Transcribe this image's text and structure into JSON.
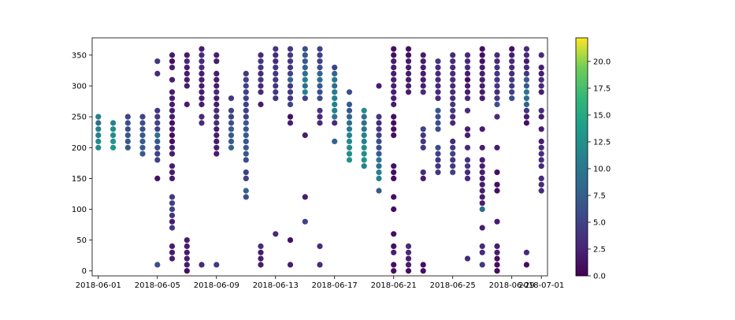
{
  "chart_data": {
    "type": "scatter",
    "title": "",
    "xlabel": "",
    "ylabel": "",
    "x_ticks": [
      "2018-06-01",
      "2018-06-05",
      "2018-06-09",
      "2018-06-13",
      "2018-06-17",
      "2018-06-21",
      "2018-06-25",
      "2018-06-29",
      "2018-07-01"
    ],
    "y_ticks": [
      "0",
      "50",
      "100",
      "150",
      "200",
      "250",
      "300",
      "350"
    ],
    "xlim": [
      "2018-05-31T14:00",
      "2018-07-01T10:00"
    ],
    "ylim": [
      -8,
      378
    ],
    "colorbar": {
      "colormap": "viridis",
      "range": [
        0,
        22.2
      ],
      "ticks": [
        "0.0",
        "2.5",
        "5.0",
        "7.5",
        "10.0",
        "12.5",
        "15.0",
        "17.5",
        "20.0"
      ]
    },
    "grid": false,
    "points": [
      {
        "x": "2018-06-01",
        "ys": [
          200,
          210,
          220,
          230,
          240,
          250
        ],
        "c": [
          12,
          12,
          11,
          11,
          9,
          11
        ]
      },
      {
        "x": "2018-06-02",
        "ys": [
          200,
          210,
          220,
          230,
          240
        ],
        "c": [
          13,
          13,
          12,
          12,
          11
        ]
      },
      {
        "x": "2018-06-03",
        "ys": [
          200,
          210,
          220,
          230,
          240,
          250
        ],
        "c": [
          7,
          7,
          7,
          6,
          6,
          5
        ]
      },
      {
        "x": "2018-06-04",
        "ys": [
          190,
          200,
          210,
          220,
          230,
          240,
          250
        ],
        "c": [
          7,
          7,
          7,
          7,
          6,
          6,
          5
        ]
      },
      {
        "x": "2018-06-05",
        "ys": [
          10,
          150,
          180,
          190,
          200,
          210,
          220,
          230,
          240,
          250,
          260,
          320,
          340
        ],
        "c": [
          6,
          1,
          5,
          5,
          6,
          7,
          9,
          5,
          5,
          4,
          4,
          3,
          4
        ]
      },
      {
        "x": "2018-06-06",
        "ys": [
          20,
          30,
          40,
          70,
          80,
          90,
          100,
          110,
          120,
          150,
          160,
          170,
          190,
          200,
          210,
          220,
          230,
          240,
          250,
          260,
          270,
          280,
          290,
          310,
          330,
          340,
          350
        ],
        "c": [
          2,
          2,
          2,
          4,
          2,
          4,
          5,
          5,
          4,
          2,
          2,
          2,
          2,
          2,
          1,
          1,
          2,
          1,
          2,
          2,
          2,
          2,
          2,
          2,
          2,
          1,
          2
        ]
      },
      {
        "x": "2018-06-07",
        "ys": [
          0,
          10,
          20,
          30,
          40,
          50,
          270,
          300,
          310,
          320,
          330,
          340,
          350
        ],
        "c": [
          1,
          2,
          2,
          2,
          2,
          2,
          2,
          2,
          2,
          2,
          2,
          3,
          2
        ]
      },
      {
        "x": "2018-06-08",
        "ys": [
          10,
          240,
          250,
          270,
          280,
          290,
          300,
          310,
          320,
          330,
          340,
          350,
          360
        ],
        "c": [
          3,
          3,
          3,
          2,
          2,
          2,
          2,
          2,
          2,
          3,
          3,
          3,
          2
        ]
      },
      {
        "x": "2018-06-09",
        "ys": [
          10,
          190,
          200,
          210,
          220,
          230,
          240,
          250,
          260,
          270,
          280,
          290,
          300,
          310,
          320,
          340,
          350
        ],
        "c": [
          4,
          2,
          2,
          2,
          2,
          2,
          3,
          3,
          3,
          2,
          2,
          3,
          2,
          2,
          2,
          2,
          2
        ]
      },
      {
        "x": "2018-06-10",
        "ys": [
          200,
          210,
          220,
          230,
          240,
          250,
          260,
          280
        ],
        "c": [
          8,
          7,
          7,
          7,
          6,
          5,
          5,
          4
        ]
      },
      {
        "x": "2018-06-11",
        "ys": [
          120,
          130,
          150,
          160,
          180,
          190,
          200,
          210,
          220,
          230,
          240,
          250,
          260,
          270,
          280,
          290,
          300,
          310,
          320
        ],
        "c": [
          6,
          8,
          5,
          5,
          6,
          7,
          7,
          7,
          7,
          7,
          7,
          5,
          5,
          5,
          5,
          5,
          5,
          5,
          4
        ]
      },
      {
        "x": "2018-06-12",
        "ys": [
          10,
          20,
          30,
          40,
          270,
          290,
          300,
          310,
          320,
          330,
          340,
          350
        ],
        "c": [
          2,
          2,
          2,
          3,
          2,
          3,
          3,
          4,
          3,
          4,
          4,
          3
        ]
      },
      {
        "x": "2018-06-13",
        "ys": [
          60,
          280,
          290,
          300,
          310,
          320,
          330,
          340,
          350,
          360
        ],
        "c": [
          3,
          4,
          4,
          4,
          4,
          4,
          4,
          3,
          3,
          4
        ]
      },
      {
        "x": "2018-06-14",
        "ys": [
          10,
          50,
          240,
          250,
          270,
          280,
          290,
          300,
          310,
          320,
          330,
          340,
          350,
          360
        ],
        "c": [
          2,
          1,
          2,
          1,
          5,
          4,
          4,
          4,
          8,
          5,
          4,
          4,
          4,
          4
        ]
      },
      {
        "x": "2018-06-15",
        "ys": [
          80,
          120,
          220,
          280,
          290,
          300,
          310,
          320,
          330,
          340,
          350,
          360
        ],
        "c": [
          5,
          2,
          2,
          5,
          11,
          9,
          11,
          9,
          8,
          7,
          7,
          6
        ]
      },
      {
        "x": "2018-06-16",
        "ys": [
          10,
          40,
          240,
          250,
          260,
          280,
          290,
          300,
          310,
          320,
          330,
          340,
          350,
          360
        ],
        "c": [
          3,
          3,
          3,
          3,
          4,
          6,
          6,
          7,
          9,
          8,
          6,
          5,
          5,
          5
        ]
      },
      {
        "x": "2018-06-17",
        "ys": [
          210,
          240,
          250,
          260,
          270,
          280,
          290,
          300,
          310,
          320,
          330
        ],
        "c": [
          8,
          3,
          10,
          11,
          11,
          11,
          10,
          9,
          10,
          8,
          5
        ]
      },
      {
        "x": "2018-06-18",
        "ys": [
          180,
          190,
          200,
          210,
          220,
          230,
          240,
          250,
          260,
          270,
          290
        ],
        "c": [
          13,
          12,
          12,
          12,
          11,
          10,
          9,
          8,
          7,
          7,
          6
        ]
      },
      {
        "x": "2018-06-19",
        "ys": [
          170,
          180,
          190,
          200,
          210,
          220,
          230,
          240,
          250,
          260
        ],
        "c": [
          11,
          13,
          12,
          12,
          11,
          11,
          10,
          9,
          9,
          12
        ]
      },
      {
        "x": "2018-06-20",
        "ys": [
          130,
          150,
          160,
          170,
          180,
          190,
          200,
          210,
          220,
          230,
          240,
          250,
          300
        ],
        "c": [
          7,
          11,
          11,
          9,
          10,
          7,
          6,
          6,
          5,
          4,
          3,
          4,
          2
        ]
      },
      {
        "x": "2018-06-21",
        "ys": [
          0,
          10,
          30,
          40,
          60,
          100,
          120,
          150,
          160,
          170,
          220,
          230,
          240,
          250,
          270,
          280,
          290,
          300,
          310,
          320,
          330,
          340,
          350,
          360
        ],
        "c": [
          1,
          1,
          2,
          1,
          1,
          1,
          1,
          1,
          1,
          1,
          1,
          1,
          1,
          1,
          2,
          2,
          2,
          2,
          2,
          2,
          2,
          2,
          1,
          1
        ]
      },
      {
        "x": "2018-06-22",
        "ys": [
          0,
          10,
          20,
          30,
          40,
          290,
          300,
          310,
          320,
          330,
          340,
          350,
          360
        ],
        "c": [
          1,
          2,
          2,
          3,
          3,
          2,
          2,
          2,
          2,
          2,
          2,
          1,
          1
        ]
      },
      {
        "x": "2018-06-23",
        "ys": [
          0,
          10,
          150,
          160,
          200,
          210,
          220,
          230,
          290,
          300,
          310,
          320,
          330,
          340,
          350
        ],
        "c": [
          1,
          1,
          2,
          3,
          4,
          4,
          4,
          5,
          3,
          2,
          2,
          2,
          2,
          2,
          2
        ]
      },
      {
        "x": "2018-06-24",
        "ys": [
          160,
          170,
          180,
          190,
          200,
          230,
          240,
          250,
          260,
          280,
          290,
          300,
          310,
          320,
          330,
          340
        ],
        "c": [
          4,
          4,
          4,
          5,
          6,
          6,
          6,
          6,
          7,
          3,
          3,
          3,
          3,
          3,
          3,
          4
        ]
      },
      {
        "x": "2018-06-25",
        "ys": [
          160,
          170,
          180,
          190,
          200,
          210,
          240,
          250,
          260,
          270,
          280,
          290,
          300,
          310,
          320,
          330,
          340,
          350
        ],
        "c": [
          5,
          4,
          4,
          5,
          4,
          3,
          3,
          3,
          4,
          4,
          3,
          3,
          3,
          3,
          3,
          3,
          3,
          3
        ]
      },
      {
        "x": "2018-06-26",
        "ys": [
          20,
          150,
          160,
          170,
          180,
          200,
          220,
          230,
          260,
          280,
          290,
          300,
          310,
          320,
          330,
          340,
          350
        ],
        "c": [
          3,
          3,
          3,
          4,
          4,
          3,
          2,
          2,
          3,
          3,
          2,
          2,
          1,
          2,
          3,
          3,
          3
        ]
      },
      {
        "x": "2018-06-27",
        "ys": [
          10,
          30,
          40,
          70,
          100,
          110,
          120,
          130,
          140,
          150,
          160,
          170,
          180,
          200,
          230,
          280,
          290,
          300,
          310,
          320,
          330,
          340,
          350,
          360
        ],
        "c": [
          4,
          3,
          3,
          2,
          9,
          2,
          2,
          2,
          2,
          2,
          2,
          2,
          2,
          2,
          2,
          2,
          2,
          2,
          2,
          2,
          2,
          1,
          1,
          1
        ]
      },
      {
        "x": "2018-06-28",
        "ys": [
          0,
          10,
          20,
          30,
          40,
          80,
          130,
          140,
          160,
          200,
          250,
          270,
          280,
          290,
          300,
          310,
          320,
          330,
          340,
          350
        ],
        "c": [
          1,
          1,
          1,
          2,
          2,
          2,
          1,
          1,
          1,
          2,
          3,
          6,
          4,
          3,
          4,
          4,
          4,
          4,
          3,
          3
        ]
      },
      {
        "x": "2018-06-29",
        "ys": [
          280,
          290,
          300,
          310,
          320,
          330,
          340,
          350,
          360
        ],
        "c": [
          6,
          5,
          4,
          4,
          3,
          3,
          3,
          2,
          1
        ]
      },
      {
        "x": "2018-06-30",
        "ys": [
          10,
          30,
          240,
          250,
          260,
          270,
          280,
          290,
          300,
          310,
          320,
          330,
          340,
          350,
          360
        ],
        "c": [
          1,
          3,
          1,
          2,
          4,
          8,
          9,
          10,
          7,
          7,
          4,
          3,
          2,
          3,
          3
        ]
      },
      {
        "x": "2018-07-01",
        "ys": [
          130,
          140,
          150,
          170,
          180,
          190,
          200,
          210,
          230,
          250,
          260,
          290,
          300,
          310,
          320,
          330,
          350
        ],
        "c": [
          3,
          3,
          3,
          3,
          3,
          3,
          3,
          2,
          2,
          2,
          3,
          2,
          3,
          3,
          2,
          2,
          3
        ]
      }
    ]
  }
}
